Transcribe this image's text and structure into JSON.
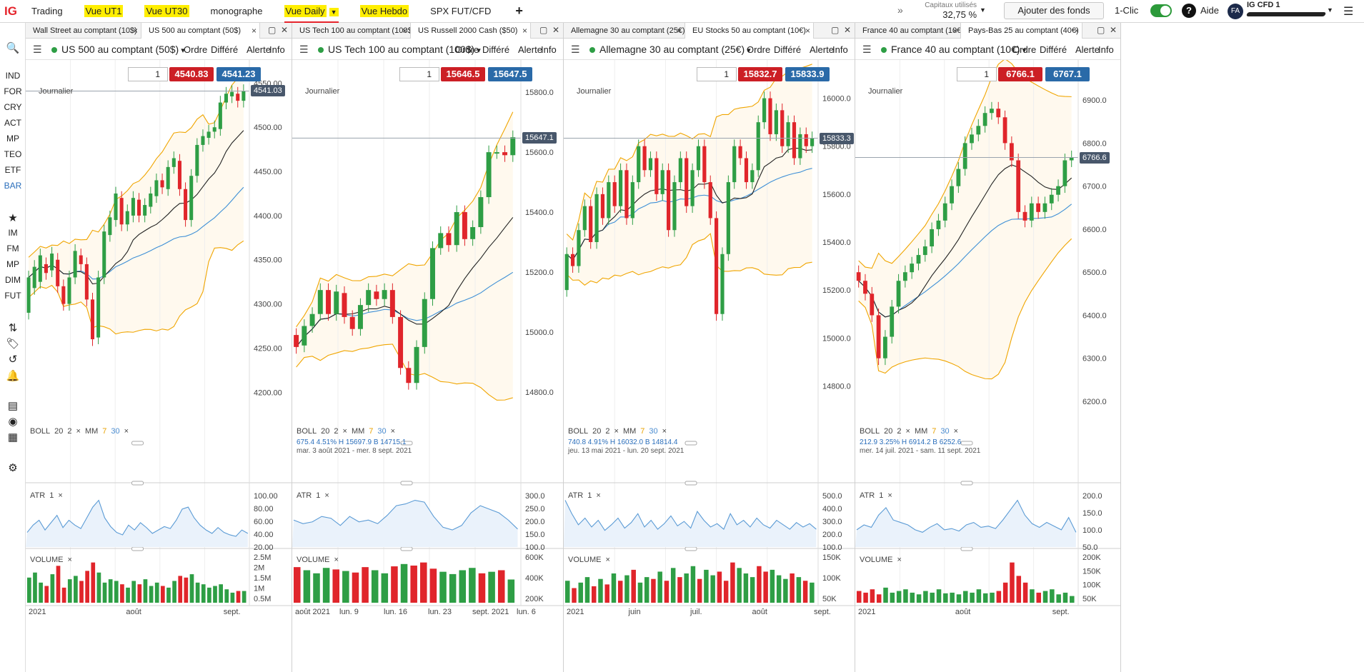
{
  "topbar": {
    "logo": "IG",
    "nav": [
      {
        "label": "Trading",
        "hl": false,
        "active": false,
        "caret": false
      },
      {
        "label": "Vue UT1",
        "hl": true,
        "active": false,
        "caret": false
      },
      {
        "label": "Vue UT30",
        "hl": true,
        "active": false,
        "caret": false
      },
      {
        "label": "monographe",
        "hl": false,
        "active": false,
        "caret": false
      },
      {
        "label": "Vue Daily",
        "hl": true,
        "active": true,
        "caret": true
      },
      {
        "label": "Vue Hebdo",
        "hl": true,
        "active": false,
        "caret": false
      },
      {
        "label": "SPX FUT/CFD",
        "hl": false,
        "active": false,
        "caret": false
      }
    ],
    "add": "+",
    "more": "»",
    "capital_label": "Capitaux utilisés",
    "capital_value": "32,75 %",
    "fund_button": "Ajouter des fonds",
    "oneclick": "1-Clic",
    "help_icon": "?",
    "help": "Aide",
    "avatar": "FA",
    "account": "IG CFD 1"
  },
  "sidebar": [
    {
      "label": "🔍",
      "icon": "search-icon"
    },
    {
      "label": "IND"
    },
    {
      "label": "FOR"
    },
    {
      "label": "CRY"
    },
    {
      "label": "ACT"
    },
    {
      "label": "MP"
    },
    {
      "label": "TEO"
    },
    {
      "label": "ETF"
    },
    {
      "label": "BAR",
      "blue": true
    },
    {
      "label": "★",
      "icon": "star-icon"
    },
    {
      "label": "IM"
    },
    {
      "label": "FM"
    },
    {
      "label": "MP"
    },
    {
      "label": "DIM"
    },
    {
      "label": "FUT"
    },
    {
      "label": "⇅",
      "icon": "transfer-icon"
    },
    {
      "label": "🏷",
      "icon": "tag-icon"
    },
    {
      "label": "↺",
      "icon": "history-icon"
    },
    {
      "label": "🔔",
      "icon": "bell-icon"
    },
    {
      "label": "▤",
      "icon": "news-icon"
    },
    {
      "label": "◉",
      "icon": "signal-icon"
    },
    {
      "label": "▦",
      "icon": "calendar-icon"
    },
    {
      "label": "⚙",
      "icon": "settings-icon"
    }
  ],
  "common": {
    "order": "Ordre",
    "deferred": "Différé",
    "alert": "Alerte",
    "info": "Info",
    "timeframe": "Journalier",
    "quantity": "1",
    "boll": "BOLL",
    "boll_p1": "20",
    "boll_p2": "2",
    "mm": "MM",
    "mm_p1": "7",
    "mm_p2": "30",
    "atr": "ATR",
    "atr_p": "1",
    "volume": "VOLUME"
  },
  "chart_data": [
    {
      "type": "candlestick",
      "instrument": "US 500 au comptant (50$)",
      "tabs": [
        "Wall Street au comptant (10$)",
        "US 500 au comptant (50$)"
      ],
      "sell": "4540.83",
      "buy": "4541.23",
      "last": "4541.03",
      "y_ticks": [
        "4550.00",
        "4500.00",
        "4450.00",
        "4400.00",
        "4350.00",
        "4300.00",
        "4250.00",
        "4200.00"
      ],
      "ylim": [
        4180,
        4560
      ],
      "x_ticks": [
        "2021",
        "août",
        "sept."
      ],
      "atr_ticks": [
        "100.00",
        "80.00",
        "60.00",
        "40.00",
        "20.00"
      ],
      "vol_ticks": [
        "2.5M",
        "2M",
        "1.5M",
        "1M",
        "0.5M"
      ],
      "candles": [
        [
          4290,
          4330
        ],
        [
          4318,
          4342
        ],
        [
          4325,
          4355
        ],
        [
          4345,
          4335
        ],
        [
          4338,
          4357
        ],
        [
          4350,
          4320
        ],
        [
          4320,
          4300
        ],
        [
          4300,
          4330
        ],
        [
          4330,
          4360
        ],
        [
          4355,
          4345
        ],
        [
          4345,
          4305
        ],
        [
          4305,
          4260
        ],
        [
          4262,
          4330
        ],
        [
          4330,
          4382
        ],
        [
          4378,
          4398
        ],
        [
          4395,
          4425
        ],
        [
          4420,
          4390
        ],
        [
          4390,
          4405
        ],
        [
          4400,
          4420
        ],
        [
          4418,
          4400
        ],
        [
          4400,
          4412
        ],
        [
          4410,
          4425
        ],
        [
          4422,
          4440
        ],
        [
          4440,
          4432
        ],
        [
          4430,
          4455
        ],
        [
          4455,
          4465
        ],
        [
          4462,
          4430
        ],
        [
          4430,
          4395
        ],
        [
          4395,
          4445
        ],
        [
          4445,
          4480
        ],
        [
          4480,
          4490
        ],
        [
          4488,
          4495
        ],
        [
          4495,
          4500
        ],
        [
          4498,
          4528
        ],
        [
          4528,
          4538
        ],
        [
          4535,
          4540
        ],
        [
          4538,
          4530
        ],
        [
          4530,
          4541
        ]
      ],
      "atr": [
        30,
        45,
        55,
        35,
        50,
        65,
        40,
        55,
        45,
        38,
        60,
        82,
        96,
        60,
        42,
        30,
        25,
        45,
        35,
        50,
        40,
        28,
        35,
        42,
        38,
        55,
        78,
        82,
        60,
        45,
        35,
        28,
        40,
        30,
        25,
        22,
        35,
        28
      ],
      "volume": [
        1.5,
        1.8,
        1.2,
        1.0,
        1.7,
        2.2,
        0.9,
        1.4,
        1.6,
        1.3,
        1.9,
        2.4,
        1.8,
        1.2,
        1.4,
        1.3,
        1.1,
        0.9,
        1.3,
        1.1,
        1.4,
        1.0,
        1.2,
        1.0,
        0.9,
        1.3,
        1.6,
        1.5,
        1.7,
        1.2,
        1.1,
        0.9,
        1.0,
        1.1,
        0.8,
        0.6,
        0.7,
        0.7
      ],
      "boll": "",
      "stats": "",
      "dates": ""
    },
    {
      "type": "candlestick",
      "instrument": "US Tech 100 au comptant (100$)",
      "tabs": [
        "US Tech 100 au comptant (100$)",
        "US Russell 2000 Cash ($50)"
      ],
      "sell": "15646.5",
      "buy": "15647.5",
      "last": "15647.1",
      "y_ticks": [
        "15800.0",
        "15600.0",
        "15400.0",
        "15200.0",
        "15000.0",
        "14800.0"
      ],
      "ylim": [
        14740,
        15860
      ],
      "x_ticks": [
        "août 2021",
        "lun. 9",
        "lun. 16",
        "lun. 23",
        "sept. 2021",
        "lun. 6"
      ],
      "atr_ticks": [
        "300.0",
        "250.0",
        "200.0",
        "150.0",
        "100.0"
      ],
      "vol_ticks": [
        "600K",
        "400K",
        "200K"
      ],
      "candles": [
        [
          14990,
          14950
        ],
        [
          14955,
          15020
        ],
        [
          15020,
          15060
        ],
        [
          15060,
          15140
        ],
        [
          15140,
          15060
        ],
        [
          15060,
          15135
        ],
        [
          15130,
          15050
        ],
        [
          15050,
          15010
        ],
        [
          15010,
          15090
        ],
        [
          15090,
          15140
        ],
        [
          15135,
          15110
        ],
        [
          15110,
          15140
        ],
        [
          15140,
          15050
        ],
        [
          15050,
          14880
        ],
        [
          14880,
          14830
        ],
        [
          14830,
          14950
        ],
        [
          14950,
          15110
        ],
        [
          15110,
          15280
        ],
        [
          15280,
          15330
        ],
        [
          15330,
          15290
        ],
        [
          15290,
          15400
        ],
        [
          15400,
          15310
        ],
        [
          15310,
          15350
        ],
        [
          15350,
          15450
        ],
        [
          15450,
          15600
        ],
        [
          15600,
          15600
        ],
        [
          15600,
          15590
        ],
        [
          15590,
          15650
        ]
      ],
      "atr": [
        150,
        130,
        140,
        170,
        160,
        120,
        170,
        140,
        150,
        130,
        175,
        230,
        240,
        260,
        250,
        170,
        110,
        95,
        120,
        190,
        230,
        210,
        190,
        150,
        100
      ],
      "volume": [
        460,
        420,
        380,
        450,
        430,
        410,
        390,
        460,
        420,
        380,
        470,
        500,
        480,
        520,
        440,
        400,
        370,
        420,
        450,
        380,
        400,
        420,
        300
      ],
      "stats": "675.4   4.51%   H 15697.9   B 14715.1",
      "dates": "mar. 3 août 2021 - mer. 8 sept. 2021"
    },
    {
      "type": "candlestick",
      "instrument": "Allemagne 30 au comptant (25€)",
      "tabs": [
        "Allemagne 30 au comptant (25€)",
        "EU Stocks 50 au comptant (10€)"
      ],
      "sell": "15832.7",
      "buy": "15833.9",
      "last": "15833.3",
      "y_ticks": [
        "16000.0",
        "15800.0",
        "15600.0",
        "15400.0",
        "15200.0",
        "15000.0",
        "14800.0"
      ],
      "ylim": [
        14700,
        16100
      ],
      "x_ticks": [
        "2021",
        "juin",
        "juil.",
        "août",
        "sept."
      ],
      "atr_ticks": [
        "500.0",
        "400.0",
        "300.0",
        "200.0",
        "100.0"
      ],
      "vol_ticks": [
        "150K",
        "100K",
        "50K"
      ],
      "candles": [
        [
          15200,
          15350
        ],
        [
          15350,
          15300
        ],
        [
          15300,
          15450
        ],
        [
          15450,
          15550
        ],
        [
          15550,
          15400
        ],
        [
          15400,
          15600
        ],
        [
          15600,
          15500
        ],
        [
          15500,
          15650
        ],
        [
          15650,
          15550
        ],
        [
          15550,
          15700
        ],
        [
          15700,
          15500
        ],
        [
          15500,
          15650
        ],
        [
          15650,
          15800
        ],
        [
          15800,
          15700
        ],
        [
          15700,
          15750
        ],
        [
          15750,
          15600
        ],
        [
          15600,
          15700
        ],
        [
          15700,
          15450
        ],
        [
          15450,
          15650
        ],
        [
          15650,
          15750
        ],
        [
          15750,
          15550
        ],
        [
          15550,
          15700
        ],
        [
          15700,
          15800
        ],
        [
          15800,
          15650
        ],
        [
          15650,
          15500
        ],
        [
          15500,
          15100
        ],
        [
          15100,
          15350
        ],
        [
          15350,
          15650
        ],
        [
          15650,
          15800
        ],
        [
          15800,
          15750
        ],
        [
          15750,
          15650
        ],
        [
          15650,
          15700
        ],
        [
          15700,
          15900
        ],
        [
          15900,
          16000
        ],
        [
          16000,
          15850
        ],
        [
          15850,
          15950
        ],
        [
          15950,
          15800
        ],
        [
          15800,
          15900
        ],
        [
          15900,
          15750
        ],
        [
          15750,
          15850
        ],
        [
          15850,
          15800
        ],
        [
          15800,
          15833
        ]
      ],
      "atr": [
        420,
        300,
        200,
        260,
        180,
        240,
        150,
        200,
        260,
        170,
        220,
        300,
        180,
        240,
        160,
        210,
        280,
        190,
        230,
        170,
        320,
        240,
        180,
        210,
        160,
        300,
        200,
        240,
        180,
        260,
        200,
        170,
        240,
        200,
        160,
        220,
        180,
        210,
        160
      ],
      "volume": [
        60,
        40,
        55,
        70,
        45,
        65,
        50,
        80,
        60,
        75,
        90,
        55,
        70,
        65,
        85,
        60,
        95,
        70,
        80,
        100,
        65,
        90,
        75,
        85,
        60,
        110,
        95,
        80,
        70,
        100,
        85,
        90,
        75,
        65,
        80,
        70,
        60,
        55
      ],
      "stats": "740.8   4.91%   H 16032.0   B 14814.4",
      "dates": "jeu. 13 mai 2021 - lun. 20 sept. 2021"
    },
    {
      "type": "candlestick",
      "instrument": "France 40 au comptant (10€)",
      "tabs": [
        "France 40 au comptant (10€)",
        "Pays-Bas 25 au comptant (40€)"
      ],
      "sell": "6766.1",
      "buy": "6767.1",
      "last": "6766.6",
      "y_ticks": [
        "6900.0",
        "6800.0",
        "6700.0",
        "6600.0",
        "6500.0",
        "6400.0",
        "6300.0",
        "6200.0"
      ],
      "ylim": [
        6180,
        6960
      ],
      "x_ticks": [
        "2021",
        "août",
        "sept."
      ],
      "atr_ticks": [
        "200.0",
        "150.0",
        "100.0",
        "50.0"
      ],
      "vol_ticks": [
        "200K",
        "150K",
        "100K",
        "50K"
      ],
      "candles": [
        [
          6500,
          6480
        ],
        [
          6480,
          6450
        ],
        [
          6450,
          6400
        ],
        [
          6400,
          6300
        ],
        [
          6300,
          6350
        ],
        [
          6350,
          6420
        ],
        [
          6420,
          6480
        ],
        [
          6480,
          6500
        ],
        [
          6500,
          6520
        ],
        [
          6520,
          6540
        ],
        [
          6540,
          6560
        ],
        [
          6560,
          6600
        ],
        [
          6600,
          6620
        ],
        [
          6620,
          6660
        ],
        [
          6660,
          6700
        ],
        [
          6700,
          6740
        ],
        [
          6740,
          6800
        ],
        [
          6800,
          6820
        ],
        [
          6820,
          6840
        ],
        [
          6840,
          6870
        ],
        [
          6870,
          6880
        ],
        [
          6880,
          6860
        ],
        [
          6860,
          6800
        ],
        [
          6800,
          6760
        ],
        [
          6760,
          6640
        ],
        [
          6640,
          6620
        ],
        [
          6620,
          6660
        ],
        [
          6660,
          6640
        ],
        [
          6640,
          6660
        ],
        [
          6660,
          6680
        ],
        [
          6680,
          6700
        ],
        [
          6700,
          6760
        ],
        [
          6760,
          6767
        ]
      ],
      "atr": [
        70,
        90,
        80,
        130,
        160,
        110,
        100,
        90,
        70,
        60,
        80,
        95,
        70,
        75,
        65,
        90,
        100,
        80,
        85,
        75,
        110,
        150,
        190,
        130,
        95,
        80,
        100,
        85,
        70,
        120,
        60
      ],
      "volume": [
        35,
        30,
        40,
        25,
        45,
        30,
        35,
        40,
        30,
        25,
        35,
        30,
        40,
        28,
        30,
        25,
        35,
        30,
        40,
        28,
        30,
        35,
        60,
        120,
        80,
        60,
        40,
        30,
        35,
        40,
        25,
        30,
        20
      ],
      "stats": "212.9   3.25%   H 6914.2   B 6252.6",
      "dates": "mer. 14 juil. 2021 - sam. 11 sept. 2021"
    }
  ],
  "colors": {
    "up": "#2e9e45",
    "down": "#e0252b",
    "boll": "#f0a500",
    "ma7": "#222222",
    "ma30": "#3d8fd6",
    "atr": "#5b9bd5",
    "panel_bg": "#fff9ee"
  }
}
